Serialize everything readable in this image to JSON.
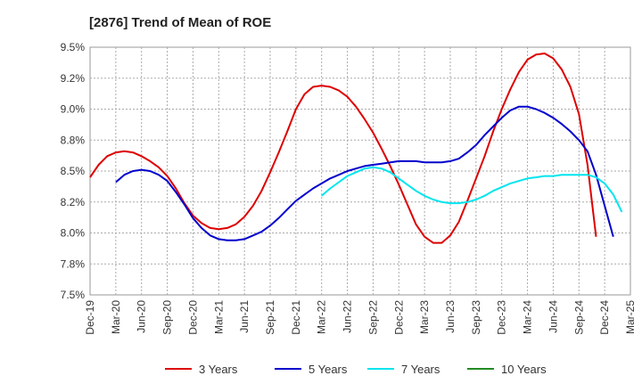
{
  "chart_data": {
    "type": "line",
    "title": "[2876]  Trend of Mean of ROE",
    "xlabel": "",
    "ylabel": "",
    "x_tick_labels": [
      "Dec-19",
      "Mar-20",
      "Jun-20",
      "Sep-20",
      "Dec-20",
      "Mar-21",
      "Jun-21",
      "Sep-21",
      "Dec-21",
      "Mar-22",
      "Jun-22",
      "Sep-22",
      "Dec-22",
      "Mar-23",
      "Jun-23",
      "Sep-23",
      "Dec-23",
      "Mar-24",
      "Jun-24",
      "Sep-24",
      "Dec-24",
      "Mar-25"
    ],
    "y_tick_labels": [
      "7.5%",
      "7.8%",
      "8.0%",
      "8.2%",
      "8.5%",
      "8.8%",
      "9.0%",
      "9.2%",
      "9.5%"
    ],
    "ylim": [
      7.5,
      9.5
    ],
    "grid": true,
    "legend_position": "bottom",
    "series": [
      {
        "name": "3 Years",
        "color": "#dd0000",
        "start_index": 0,
        "values": [
          8.45,
          8.55,
          8.62,
          8.65,
          8.66,
          8.65,
          8.62,
          8.58,
          8.53,
          8.46,
          8.36,
          8.24,
          8.14,
          8.08,
          8.04,
          8.03,
          8.04,
          8.07,
          8.13,
          8.22,
          8.34,
          8.49,
          8.65,
          8.82,
          9.0,
          9.12,
          9.18,
          9.19,
          9.18,
          9.15,
          9.1,
          9.02,
          8.92,
          8.81,
          8.68,
          8.54,
          8.39,
          8.23,
          8.07,
          7.97,
          7.92,
          7.92,
          7.98,
          8.09,
          8.26,
          8.44,
          8.62,
          8.82,
          9.0,
          9.16,
          9.3,
          9.4,
          9.44,
          9.45,
          9.41,
          9.32,
          9.18,
          8.96,
          8.55,
          7.97
        ]
      },
      {
        "name": "5 Years",
        "color": "#0000cc",
        "start_index": 3,
        "values": [
          8.41,
          8.47,
          8.5,
          8.51,
          8.5,
          8.47,
          8.42,
          8.33,
          8.23,
          8.12,
          8.04,
          7.98,
          7.95,
          7.94,
          7.94,
          7.95,
          7.98,
          8.01,
          8.06,
          8.12,
          8.19,
          8.26,
          8.31,
          8.36,
          8.4,
          8.44,
          8.47,
          8.5,
          8.52,
          8.54,
          8.55,
          8.56,
          8.57,
          8.58,
          8.58,
          8.58,
          8.57,
          8.57,
          8.57,
          8.58,
          8.6,
          8.65,
          8.71,
          8.79,
          8.86,
          8.93,
          8.99,
          9.02,
          9.02,
          9.0,
          8.97,
          8.93,
          8.88,
          8.82,
          8.75,
          8.66,
          8.47,
          8.22,
          7.97
        ]
      },
      {
        "name": "7 Years",
        "color": "#00e5ee",
        "start_index": 27,
        "values": [
          8.3,
          8.36,
          8.41,
          8.46,
          8.49,
          8.52,
          8.53,
          8.52,
          8.49,
          8.44,
          8.39,
          8.34,
          8.3,
          8.27,
          8.25,
          8.24,
          8.24,
          8.25,
          8.27,
          8.3,
          8.34,
          8.37,
          8.4,
          8.42,
          8.44,
          8.45,
          8.46,
          8.46,
          8.47,
          8.47,
          8.47,
          8.47,
          8.45,
          8.4,
          8.31,
          8.17
        ]
      },
      {
        "name": "10 Years",
        "color": "#228b22",
        "start_index": 0,
        "values": []
      }
    ]
  }
}
